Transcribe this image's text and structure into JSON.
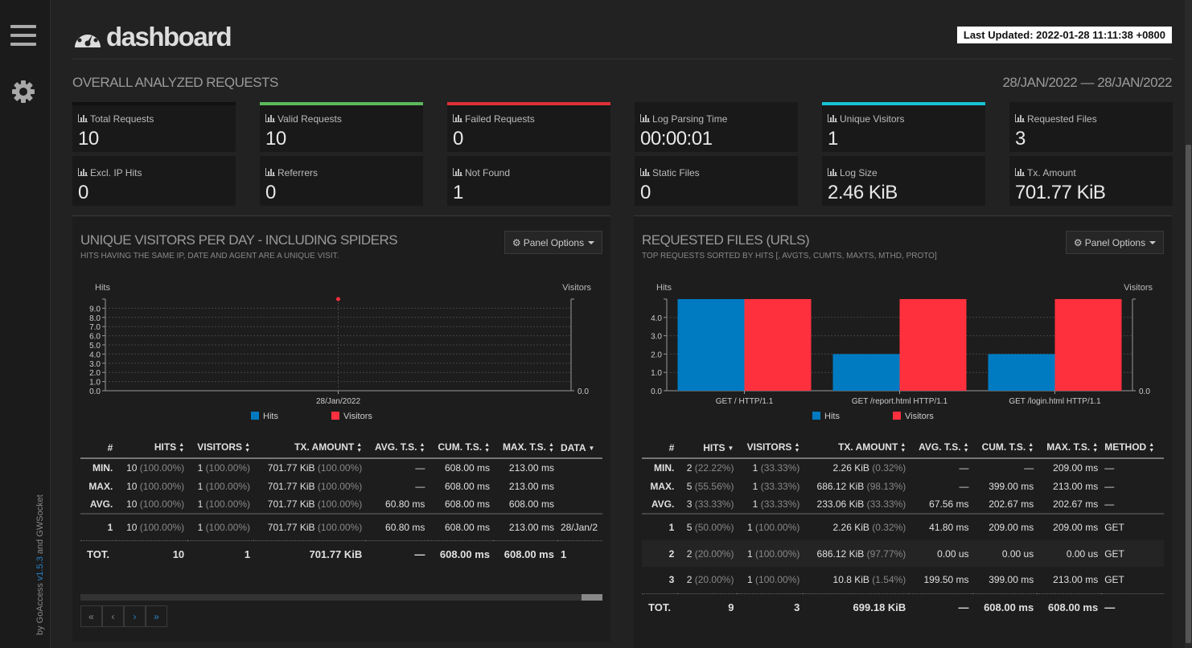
{
  "app": {
    "logo": "dashboard",
    "last_updated": "Last Updated: 2022-01-28 11:11:38 +0800"
  },
  "credit": {
    "prefix": "by GoAccess ",
    "version": "v1.5.3",
    "suffix": " and GWSocket"
  },
  "overall": {
    "title": "OVERALL ANALYZED REQUESTS",
    "date_range": "28/JAN/2022 — 28/JAN/2022",
    "cards": [
      {
        "label": "Total Requests",
        "value": "10",
        "accent": "#111111"
      },
      {
        "label": "Valid Requests",
        "value": "10",
        "accent": "#5cb85c"
      },
      {
        "label": "Failed Requests",
        "value": "0",
        "accent": "#e03038"
      },
      {
        "label": "Log Parsing Time",
        "value": "00:00:01",
        "accent": "#191919"
      },
      {
        "label": "Unique Visitors",
        "value": "1",
        "accent": "#17c3d4"
      },
      {
        "label": "Requested Files",
        "value": "3",
        "accent": "#191919"
      },
      {
        "label": "Excl. IP Hits",
        "value": "0",
        "accent": "#191919"
      },
      {
        "label": "Referrers",
        "value": "0",
        "accent": "#191919"
      },
      {
        "label": "Not Found",
        "value": "1",
        "accent": "#191919"
      },
      {
        "label": "Static Files",
        "value": "0",
        "accent": "#191919"
      },
      {
        "label": "Log Size",
        "value": "2.46 KiB",
        "accent": "#191919"
      },
      {
        "label": "Tx. Amount",
        "value": "701.77 KiB",
        "accent": "#191919"
      }
    ]
  },
  "visitors_panel": {
    "title": "UNIQUE VISITORS PER DAY - INCLUDING SPIDERS",
    "subtitle": "HITS HAVING THE SAME IP, DATE AND AGENT ARE A UNIQUE VISIT.",
    "options_label": "Panel Options",
    "headers": [
      "#",
      "HITS",
      "VISITORS",
      "TX. AMOUNT",
      "AVG. T.S.",
      "CUM. T.S.",
      "MAX. T.S.",
      "DATA"
    ],
    "min": {
      "label": "MIN.",
      "hits": "10",
      "hits_pct": "(100.00%)",
      "visitors": "1",
      "visitors_pct": "(100.00%)",
      "tx": "701.77 KiB",
      "tx_pct": "(100.00%)",
      "avg": "—",
      "cum": "608.00 ms",
      "max": "213.00 ms",
      "data": ""
    },
    "max": {
      "label": "MAX.",
      "hits": "10",
      "hits_pct": "(100.00%)",
      "visitors": "1",
      "visitors_pct": "(100.00%)",
      "tx": "701.77 KiB",
      "tx_pct": "(100.00%)",
      "avg": "—",
      "cum": "608.00 ms",
      "max": "213.00 ms",
      "data": ""
    },
    "avg": {
      "label": "AVG.",
      "hits": "10",
      "hits_pct": "(100.00%)",
      "visitors": "1",
      "visitors_pct": "(100.00%)",
      "tx": "701.77 KiB",
      "tx_pct": "(100.00%)",
      "avg": "60.80 ms",
      "cum": "608.00 ms",
      "max": "608.00 ms",
      "data": ""
    },
    "rows": [
      {
        "n": "1",
        "hits": "10",
        "hits_pct": "(100.00%)",
        "visitors": "1",
        "visitors_pct": "(100.00%)",
        "tx": "701.77 KiB",
        "tx_pct": "(100.00%)",
        "avg": "60.80 ms",
        "cum": "608.00 ms",
        "max": "213.00 ms",
        "data": "28/Jan/2"
      }
    ],
    "total": {
      "label": "TOT.",
      "hits": "10",
      "visitors": "1",
      "tx": "701.77 KiB",
      "avg": "—",
      "cum": "608.00 ms",
      "max": "608.00 ms",
      "data": "1"
    },
    "pager": [
      "«",
      "‹",
      "›",
      "»"
    ]
  },
  "files_panel": {
    "title": "REQUESTED FILES (URLS)",
    "subtitle": "TOP REQUESTS SORTED BY HITS [, AVGTS, CUMTS, MAXTS, MTHD, PROTO]",
    "options_label": "Panel Options",
    "headers": [
      "#",
      "HITS",
      "VISITORS",
      "TX. AMOUNT",
      "AVG. T.S.",
      "CUM. T.S.",
      "MAX. T.S.",
      "METHOD"
    ],
    "min": {
      "label": "MIN.",
      "hits": "2",
      "hits_pct": "(22.22%)",
      "visitors": "1",
      "visitors_pct": "(33.33%)",
      "tx": "2.26 KiB",
      "tx_pct": "(0.32%)",
      "avg": "—",
      "cum": "—",
      "max": "209.00 ms",
      "method": "—"
    },
    "max": {
      "label": "MAX.",
      "hits": "5",
      "hits_pct": "(55.56%)",
      "visitors": "1",
      "visitors_pct": "(33.33%)",
      "tx": "686.12 KiB",
      "tx_pct": "(98.13%)",
      "avg": "—",
      "cum": "399.00 ms",
      "max": "213.00 ms",
      "method": "—"
    },
    "avg": {
      "label": "AVG.",
      "hits": "3",
      "hits_pct": "(33.33%)",
      "visitors": "1",
      "visitors_pct": "(33.33%)",
      "tx": "233.06 KiB",
      "tx_pct": "(33.33%)",
      "avg": "67.56 ms",
      "cum": "202.67 ms",
      "max": "202.67 ms",
      "method": "—"
    },
    "rows": [
      {
        "n": "1",
        "hits": "5",
        "hits_pct": "(50.00%)",
        "visitors": "1",
        "visitors_pct": "(100.00%)",
        "tx": "2.26 KiB",
        "tx_pct": "(0.32%)",
        "avg": "41.80 ms",
        "cum": "209.00 ms",
        "max": "209.00 ms",
        "method": "GET"
      },
      {
        "n": "2",
        "hits": "2",
        "hits_pct": "(20.00%)",
        "visitors": "1",
        "visitors_pct": "(100.00%)",
        "tx": "686.12 KiB",
        "tx_pct": "(97.77%)",
        "avg": "0.00 us",
        "cum": "0.00 us",
        "max": "0.00 us",
        "method": "GET"
      },
      {
        "n": "3",
        "hits": "2",
        "hits_pct": "(20.00%)",
        "visitors": "1",
        "visitors_pct": "(100.00%)",
        "tx": "10.8 KiB",
        "tx_pct": "(1.54%)",
        "avg": "199.50 ms",
        "cum": "399.00 ms",
        "max": "213.00 ms",
        "method": "GET"
      }
    ],
    "total": {
      "label": "TOT.",
      "hits": "9",
      "visitors": "3",
      "tx": "699.18 KiB",
      "avg": "—",
      "cum": "608.00 ms",
      "max": "608.00 ms",
      "method": "—"
    }
  },
  "chart_data": [
    {
      "type": "line",
      "title": "UNIQUE VISITORS PER DAY - INCLUDING SPIDERS",
      "ylabel_left": "Hits",
      "ylabel_right": "Visitors",
      "yticks_left": [
        "0.0",
        "1.0",
        "2.0",
        "3.0",
        "4.0",
        "5.0",
        "6.0",
        "7.0",
        "8.0",
        "9.0"
      ],
      "ylim": [
        0,
        10
      ],
      "ytick_right": "0.0",
      "categories": [
        "28/Jan/2022"
      ],
      "series": [
        {
          "name": "Hits",
          "values": [
            10
          ],
          "color": "#007bc2"
        },
        {
          "name": "Visitors",
          "values": [
            1
          ],
          "color": "#ff303e"
        }
      ],
      "legend": [
        "Hits",
        "Visitors"
      ]
    },
    {
      "type": "bar",
      "title": "REQUESTED FILES (URLS)",
      "ylabel_left": "Hits",
      "ylabel_right": "Visitors",
      "yticks_left": [
        "0.0",
        "1.0",
        "2.0",
        "3.0",
        "4.0"
      ],
      "ylim": [
        0,
        5
      ],
      "ytick_right": "0.0",
      "categories": [
        "GET / HTTP/1.1",
        "GET /report.html HTTP/1.1",
        "GET /login.html HTTP/1.1"
      ],
      "series": [
        {
          "name": "Hits",
          "values": [
            5,
            2,
            2
          ],
          "color": "#007bc2"
        },
        {
          "name": "Visitors",
          "values": [
            1,
            1,
            1
          ],
          "color": "#ff303e"
        }
      ],
      "legend": [
        "Hits",
        "Visitors"
      ]
    }
  ]
}
